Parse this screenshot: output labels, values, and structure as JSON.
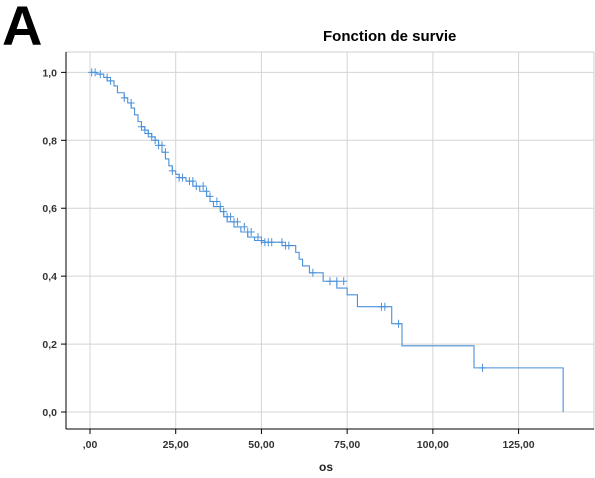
{
  "panel_label": "A",
  "chart_data": {
    "type": "line",
    "title": "Fonction de survie",
    "xlabel": "os",
    "ylabel": "",
    "xlim": [
      -7,
      147
    ],
    "ylim": [
      -0.05,
      1.06
    ],
    "x_ticks": [
      0,
      25,
      50,
      75,
      100,
      125
    ],
    "x_tick_labels": [
      ",00",
      "25,00",
      "50,00",
      "75,00",
      "100,00",
      "125,00"
    ],
    "y_ticks": [
      0,
      0.2,
      0.4,
      0.6,
      0.8,
      1.0
    ],
    "y_tick_labels": [
      "0,0",
      "0,2",
      "0,4",
      "0,6",
      "0,8",
      "1,0"
    ],
    "grid": true,
    "line_color": "#4a90d9",
    "series": [
      {
        "style": "step",
        "x": [
          0,
          2,
          4,
          5,
          7,
          8,
          10,
          11,
          12,
          13,
          14,
          15,
          16,
          17,
          18,
          19,
          20,
          21,
          22,
          23,
          24,
          25,
          26,
          28,
          30,
          32,
          34,
          35,
          36,
          38,
          39,
          40,
          42,
          44,
          46,
          48,
          50,
          56,
          60,
          61,
          62,
          64,
          68,
          72,
          75,
          78,
          88,
          91,
          112,
          138
        ],
        "y": [
          1.0,
          0.995,
          0.985,
          0.975,
          0.96,
          0.94,
          0.925,
          0.91,
          0.895,
          0.875,
          0.855,
          0.84,
          0.83,
          0.82,
          0.81,
          0.8,
          0.785,
          0.765,
          0.745,
          0.725,
          0.71,
          0.7,
          0.69,
          0.68,
          0.665,
          0.65,
          0.635,
          0.62,
          0.605,
          0.59,
          0.575,
          0.56,
          0.545,
          0.53,
          0.515,
          0.505,
          0.5,
          0.49,
          0.47,
          0.45,
          0.43,
          0.41,
          0.385,
          0.365,
          0.345,
          0.31,
          0.26,
          0.195,
          0.13,
          0.0
        ]
      }
    ],
    "censored": {
      "x": [
        0.5,
        1.5,
        3,
        5,
        6,
        10,
        12,
        15,
        16,
        17,
        18,
        19,
        20,
        21,
        22,
        24,
        26,
        27,
        29,
        30,
        31,
        33,
        34,
        35,
        37,
        38,
        39,
        40,
        41,
        42,
        43,
        45,
        46,
        47,
        49,
        50,
        51,
        52,
        53,
        56,
        57,
        58,
        65,
        70,
        72,
        74,
        85,
        86,
        90,
        114.5
      ],
      "y": [
        1.0,
        1.0,
        0.995,
        0.985,
        0.975,
        0.925,
        0.91,
        0.84,
        0.83,
        0.82,
        0.81,
        0.8,
        0.785,
        0.785,
        0.765,
        0.71,
        0.69,
        0.69,
        0.68,
        0.68,
        0.665,
        0.665,
        0.65,
        0.635,
        0.62,
        0.605,
        0.59,
        0.575,
        0.575,
        0.56,
        0.56,
        0.545,
        0.53,
        0.53,
        0.515,
        0.505,
        0.5,
        0.5,
        0.5,
        0.5,
        0.49,
        0.49,
        0.41,
        0.385,
        0.385,
        0.385,
        0.31,
        0.31,
        0.26,
        0.13
      ]
    }
  }
}
